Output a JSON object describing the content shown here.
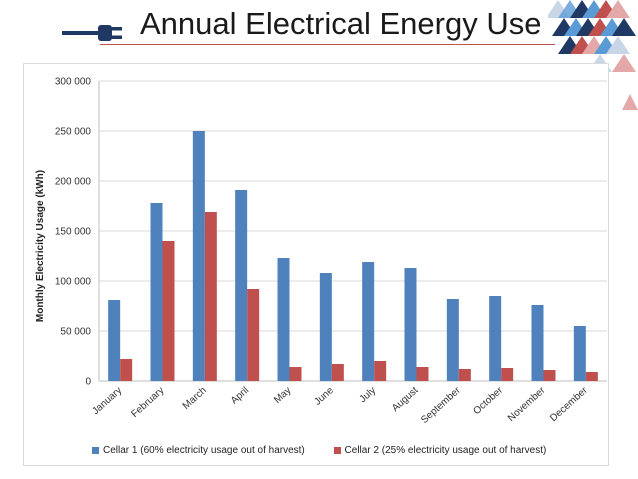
{
  "slide": {
    "title": "Annual Electrical Energy Use"
  },
  "colors": {
    "cellar1": "#4f81bd",
    "cellar2": "#c0504d",
    "grid": "#d9d9d9",
    "deco_navy": "#1f3864",
    "deco_blue": "#5b9bd5",
    "deco_red": "#c0504d"
  },
  "icons": {
    "plug": "plug-icon"
  },
  "chart_data": {
    "type": "bar",
    "title": "",
    "xlabel": "",
    "ylabel": "Monthly Electricity Usage (kWh)",
    "ylim": [
      0,
      300000
    ],
    "yticks": [
      0,
      50000,
      100000,
      150000,
      200000,
      250000,
      300000
    ],
    "ytick_labels": [
      "0",
      "50 000",
      "100 000",
      "150 000",
      "200 000",
      "250 000",
      "300 000"
    ],
    "grid": true,
    "legend_position": "bottom",
    "categories": [
      "January",
      "February",
      "March",
      "April",
      "May",
      "June",
      "July",
      "August",
      "September",
      "October",
      "November",
      "December"
    ],
    "series": [
      {
        "name": "Cellar 1 (60% electricity usage out of harvest)",
        "values": [
          81000,
          178000,
          250000,
          191000,
          123000,
          108000,
          119000,
          113000,
          82000,
          85000,
          76000,
          55000
        ]
      },
      {
        "name": "Cellar 2 (25% electricity usage out of harvest)",
        "values": [
          22000,
          140000,
          169000,
          92000,
          14000,
          17000,
          20000,
          14000,
          12000,
          13000,
          11000,
          9000
        ]
      }
    ]
  }
}
